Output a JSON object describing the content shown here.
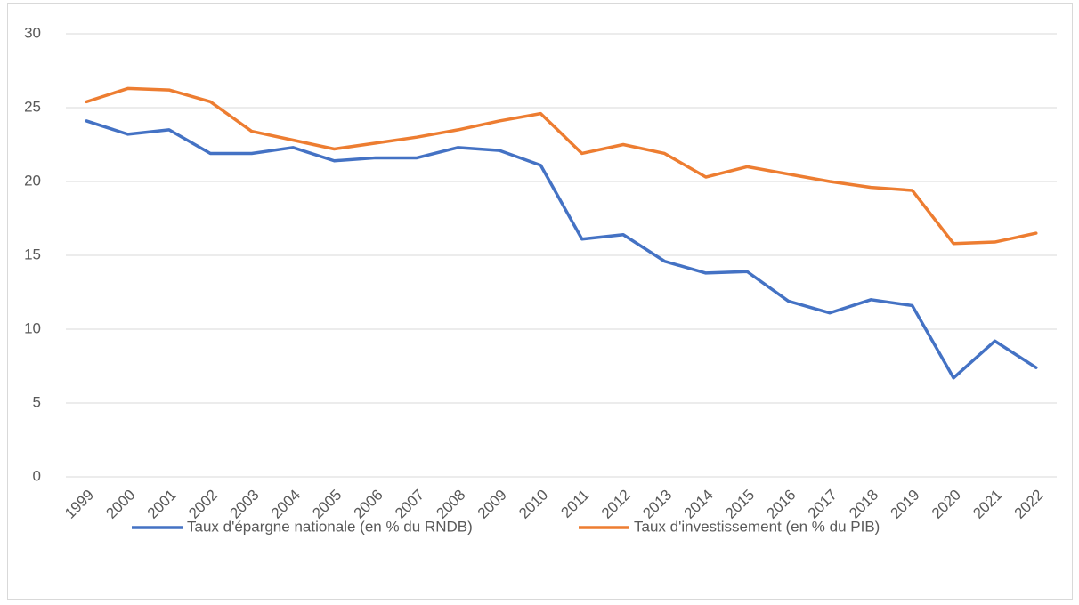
{
  "chart_data": {
    "type": "line",
    "categories": [
      "1999",
      "2000",
      "2001",
      "2002",
      "2003",
      "2004",
      "2005",
      "2006",
      "2007",
      "2008",
      "2009",
      "2010",
      "2011",
      "2012",
      "2013",
      "2014",
      "2015",
      "2016",
      "2017",
      "2018",
      "2019",
      "2020",
      "2021",
      "2022"
    ],
    "series": [
      {
        "name": "Taux d'épargne nationale (en % du RNDB)",
        "color": "#4472c4",
        "values": [
          24.1,
          23.2,
          23.5,
          21.9,
          21.9,
          22.3,
          21.4,
          21.6,
          21.6,
          22.3,
          22.1,
          21.1,
          16.1,
          16.4,
          14.6,
          13.8,
          13.9,
          11.9,
          11.1,
          12.0,
          11.6,
          6.7,
          9.2,
          7.4
        ]
      },
      {
        "name": "Taux d'investissement (en % du PIB)",
        "color": "#ed7d31",
        "values": [
          25.4,
          26.3,
          26.2,
          25.4,
          23.4,
          22.8,
          22.2,
          22.6,
          23.0,
          23.5,
          24.1,
          24.6,
          21.9,
          22.5,
          21.9,
          20.3,
          21.0,
          20.5,
          20.0,
          19.6,
          19.4,
          15.8,
          15.9,
          16.5
        ]
      }
    ],
    "ylim": [
      0,
      30
    ],
    "yticks": [
      0,
      5,
      10,
      15,
      20,
      25,
      30
    ],
    "grid": true,
    "legend": "bottom"
  }
}
